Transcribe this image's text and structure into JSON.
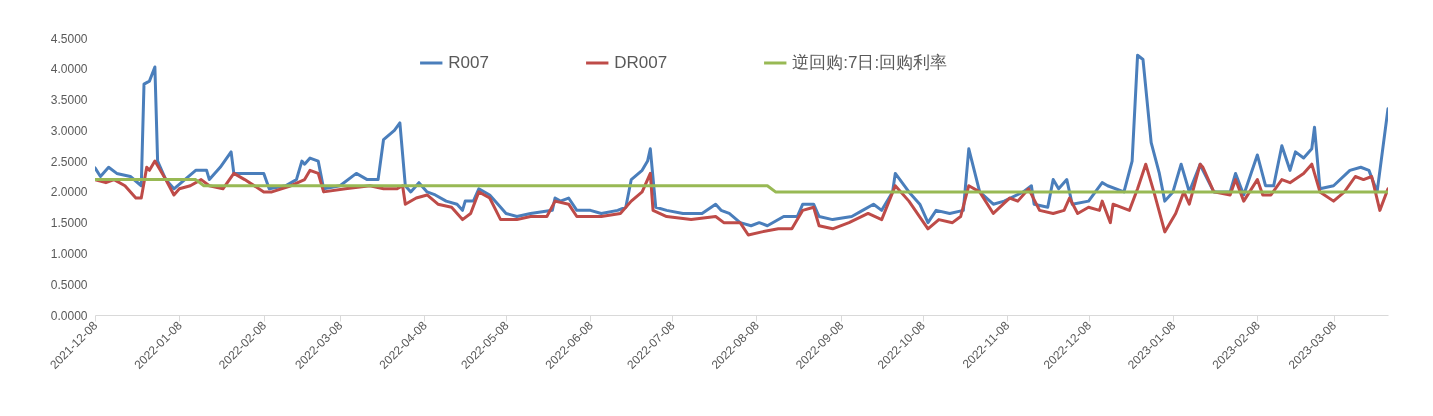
{
  "chart_data": {
    "type": "line",
    "legend": "top",
    "line_style": "solid",
    "xlim": [
      "2021-12-08",
      "2023-03-28"
    ],
    "xticks": [
      "2021-12-08",
      "2022-01-08",
      "2022-02-08",
      "2022-03-08",
      "2022-04-08",
      "2022-05-08",
      "2022-06-08",
      "2022-07-08",
      "2022-08-08",
      "2022-09-08",
      "2022-10-08",
      "2022-11-08",
      "2022-12-08",
      "2023-01-08",
      "2023-02-08",
      "2023-03-08"
    ],
    "ylim": [
      0,
      4.5
    ],
    "yticks": [
      {
        "value": 0,
        "label": "0.0000"
      },
      {
        "value": 0.5,
        "label": "0.5000"
      },
      {
        "value": 1,
        "label": "1.0000"
      },
      {
        "value": 1.5,
        "label": "1.5000"
      },
      {
        "value": 2,
        "label": "2.0000"
      },
      {
        "value": 2.5,
        "label": "2.5000"
      },
      {
        "value": 3,
        "label": "3.0000"
      },
      {
        "value": 3.5,
        "label": "3.5000"
      },
      {
        "value": 4,
        "label": "4.0000"
      },
      {
        "value": 4.5,
        "label": "4.5000"
      }
    ],
    "series": [
      {
        "name": "R007",
        "color": "#4a7ebb",
        "x": [
          "2021-12-08",
          "2021-12-10",
          "2021-12-13",
          "2021-12-16",
          "2021-12-21",
          "2021-12-25",
          "2021-12-26",
          "2021-12-28",
          "2021-12-30",
          "2021-12-31",
          "2022-01-03",
          "2022-01-06",
          "2022-01-10",
          "2022-01-14",
          "2022-01-18",
          "2022-01-19",
          "2022-01-23",
          "2022-01-27",
          "2022-01-28",
          "2022-02-01",
          "2022-02-08",
          "2022-02-10",
          "2022-02-16",
          "2022-02-20",
          "2022-02-22",
          "2022-02-23",
          "2022-02-25",
          "2022-02-28",
          "2022-03-02",
          "2022-03-08",
          "2022-03-14",
          "2022-03-18",
          "2022-03-22",
          "2022-03-24",
          "2022-03-28",
          "2022-03-30",
          "2022-04-01",
          "2022-04-03",
          "2022-04-06",
          "2022-04-09",
          "2022-04-12",
          "2022-04-16",
          "2022-04-20",
          "2022-04-22",
          "2022-04-23",
          "2022-04-26",
          "2022-04-28",
          "2022-05-02",
          "2022-05-06",
          "2022-05-08",
          "2022-05-12",
          "2022-05-17",
          "2022-05-25",
          "2022-05-26",
          "2022-05-28",
          "2022-05-31",
          "2022-06-03",
          "2022-06-08",
          "2022-06-12",
          "2022-06-18",
          "2022-06-21",
          "2022-06-23",
          "2022-06-27",
          "2022-06-29",
          "2022-06-30",
          "2022-07-02",
          "2022-07-06",
          "2022-07-12",
          "2022-07-19",
          "2022-07-24",
          "2022-07-26",
          "2022-07-29",
          "2022-08-02",
          "2022-08-06",
          "2022-08-09",
          "2022-08-12",
          "2022-08-18",
          "2022-08-23",
          "2022-08-25",
          "2022-08-29",
          "2022-08-31",
          "2022-09-05",
          "2022-09-12",
          "2022-09-16",
          "2022-09-20",
          "2022-09-23",
          "2022-09-27",
          "2022-09-28",
          "2022-10-03",
          "2022-10-07",
          "2022-10-10",
          "2022-10-13",
          "2022-10-18",
          "2022-10-23",
          "2022-10-25",
          "2022-10-29",
          "2022-11-03",
          "2022-11-07",
          "2022-11-14",
          "2022-11-17",
          "2022-11-18",
          "2022-11-23",
          "2022-11-25",
          "2022-11-27",
          "2022-11-30",
          "2022-12-02",
          "2022-12-08",
          "2022-12-13",
          "2022-12-15",
          "2022-12-21",
          "2022-12-24",
          "2022-12-26",
          "2022-12-28",
          "2022-12-31",
          "2023-01-03",
          "2023-01-05",
          "2023-01-08",
          "2023-01-11",
          "2023-01-14",
          "2023-01-18",
          "2023-01-19",
          "2023-01-23",
          "2023-01-29",
          "2023-01-31",
          "2023-02-03",
          "2023-02-08",
          "2023-02-11",
          "2023-02-14",
          "2023-02-17",
          "2023-02-20",
          "2023-02-22",
          "2023-02-25",
          "2023-02-28",
          "2023-03-01",
          "2023-03-03",
          "2023-03-08",
          "2023-03-14",
          "2023-03-18",
          "2023-03-21",
          "2023-03-24",
          "2023-03-28"
        ],
        "values": [
          2.39,
          2.25,
          2.4,
          2.3,
          2.25,
          2.1,
          3.75,
          3.8,
          4.03,
          2.5,
          2.2,
          2.05,
          2.2,
          2.35,
          2.35,
          2.2,
          2.4,
          2.65,
          2.3,
          2.3,
          2.3,
          2.05,
          2.1,
          2.2,
          2.5,
          2.45,
          2.55,
          2.5,
          2.05,
          2.1,
          2.3,
          2.2,
          2.2,
          2.85,
          3.0,
          3.12,
          2.1,
          2.0,
          2.15,
          2.0,
          1.95,
          1.85,
          1.8,
          1.7,
          1.85,
          1.85,
          2.05,
          1.95,
          1.75,
          1.65,
          1.6,
          1.65,
          1.7,
          1.9,
          1.85,
          1.9,
          1.7,
          1.7,
          1.65,
          1.7,
          1.75,
          2.2,
          2.35,
          2.5,
          2.7,
          1.75,
          1.7,
          1.65,
          1.65,
          1.8,
          1.7,
          1.65,
          1.5,
          1.45,
          1.5,
          1.45,
          1.6,
          1.6,
          1.8,
          1.8,
          1.6,
          1.55,
          1.6,
          1.7,
          1.8,
          1.7,
          2.0,
          2.3,
          2.0,
          1.8,
          1.5,
          1.7,
          1.65,
          1.7,
          2.7,
          2.0,
          1.8,
          1.85,
          2.0,
          2.1,
          1.8,
          1.75,
          2.2,
          2.05,
          2.2,
          1.8,
          1.85,
          2.15,
          2.1,
          2.0,
          2.5,
          4.22,
          4.15,
          2.8,
          2.3,
          1.85,
          2.0,
          2.45,
          2.0,
          2.45,
          2.35,
          2.0,
          2.0,
          2.3,
          1.95,
          2.6,
          2.1,
          2.1,
          2.75,
          2.35,
          2.65,
          2.55,
          2.7,
          3.05,
          2.05,
          2.1,
          2.35,
          2.4,
          2.35,
          2.0,
          3.35
        ]
      },
      {
        "name": "DR007",
        "color": "#be4b48",
        "x": [
          "2021-12-08",
          "2021-12-12",
          "2021-12-15",
          "2021-12-19",
          "2021-12-23",
          "2021-12-25",
          "2021-12-27",
          "2021-12-28",
          "2021-12-30",
          "2022-01-03",
          "2022-01-06",
          "2022-01-08",
          "2022-01-12",
          "2022-01-16",
          "2022-01-19",
          "2022-01-24",
          "2022-01-28",
          "2022-02-01",
          "2022-02-08",
          "2022-02-11",
          "2022-02-18",
          "2022-02-23",
          "2022-02-25",
          "2022-02-28",
          "2022-03-02",
          "2022-03-10",
          "2022-03-19",
          "2022-03-24",
          "2022-03-29",
          "2022-03-31",
          "2022-04-01",
          "2022-04-05",
          "2022-04-09",
          "2022-04-13",
          "2022-04-18",
          "2022-04-22",
          "2022-04-25",
          "2022-04-28",
          "2022-05-02",
          "2022-05-06",
          "2022-05-12",
          "2022-05-17",
          "2022-05-23",
          "2022-05-26",
          "2022-05-31",
          "2022-06-03",
          "2022-06-12",
          "2022-06-19",
          "2022-06-23",
          "2022-06-27",
          "2022-06-30",
          "2022-07-01",
          "2022-07-06",
          "2022-07-15",
          "2022-07-24",
          "2022-07-27",
          "2022-08-02",
          "2022-08-05",
          "2022-08-10",
          "2022-08-16",
          "2022-08-21",
          "2022-08-25",
          "2022-08-29",
          "2022-08-31",
          "2022-09-05",
          "2022-09-11",
          "2022-09-18",
          "2022-09-23",
          "2022-09-28",
          "2022-10-03",
          "2022-10-10",
          "2022-10-14",
          "2022-10-19",
          "2022-10-22",
          "2022-10-25",
          "2022-10-29",
          "2022-11-03",
          "2022-11-09",
          "2022-11-12",
          "2022-11-16",
          "2022-11-20",
          "2022-11-25",
          "2022-11-29",
          "2022-12-01",
          "2022-12-04",
          "2022-12-08",
          "2022-12-12",
          "2022-12-13",
          "2022-12-16",
          "2022-12-17",
          "2022-12-23",
          "2022-12-26",
          "2022-12-29",
          "2023-01-01",
          "2023-01-05",
          "2023-01-09",
          "2023-01-12",
          "2023-01-14",
          "2023-01-18",
          "2023-01-19",
          "2023-01-23",
          "2023-01-29",
          "2023-01-31",
          "2023-02-03",
          "2023-02-08",
          "2023-02-10",
          "2023-02-13",
          "2023-02-17",
          "2023-02-20",
          "2023-02-25",
          "2023-02-28",
          "2023-03-03",
          "2023-03-08",
          "2023-03-12",
          "2023-03-16",
          "2023-03-19",
          "2023-03-22",
          "2023-03-25",
          "2023-03-28"
        ],
        "values": [
          2.2,
          2.15,
          2.2,
          2.1,
          1.9,
          1.9,
          2.4,
          2.35,
          2.5,
          2.2,
          1.95,
          2.05,
          2.1,
          2.2,
          2.1,
          2.05,
          2.3,
          2.2,
          2.0,
          2.0,
          2.1,
          2.2,
          2.35,
          2.3,
          2.0,
          2.05,
          2.1,
          2.05,
          2.05,
          2.1,
          1.8,
          1.9,
          1.95,
          1.8,
          1.75,
          1.55,
          1.65,
          2.0,
          1.9,
          1.55,
          1.55,
          1.6,
          1.6,
          1.85,
          1.8,
          1.6,
          1.6,
          1.65,
          1.85,
          2.0,
          2.3,
          1.7,
          1.6,
          1.55,
          1.6,
          1.5,
          1.5,
          1.3,
          1.35,
          1.4,
          1.4,
          1.7,
          1.75,
          1.45,
          1.4,
          1.5,
          1.65,
          1.55,
          2.1,
          1.85,
          1.4,
          1.55,
          1.5,
          1.6,
          2.1,
          2.0,
          1.65,
          1.9,
          1.85,
          2.05,
          1.7,
          1.65,
          1.7,
          1.9,
          1.65,
          1.75,
          1.7,
          1.85,
          1.5,
          1.8,
          1.7,
          2.05,
          2.45,
          2.0,
          1.35,
          1.65,
          2.0,
          1.8,
          2.45,
          2.4,
          2.0,
          1.95,
          2.2,
          1.85,
          2.2,
          1.95,
          1.95,
          2.2,
          2.15,
          2.3,
          2.45,
          2.0,
          1.85,
          2.0,
          2.25,
          2.2,
          2.25,
          1.7,
          2.05
        ]
      },
      {
        "name": "逆回购:7日:回购利率",
        "color": "#98b954",
        "x": [
          "2021-12-08",
          "2022-01-14",
          "2022-01-17",
          "2022-08-12",
          "2022-08-15",
          "2023-03-28"
        ],
        "values": [
          2.2,
          2.2,
          2.1,
          2.1,
          2.0,
          2.0
        ]
      }
    ]
  }
}
